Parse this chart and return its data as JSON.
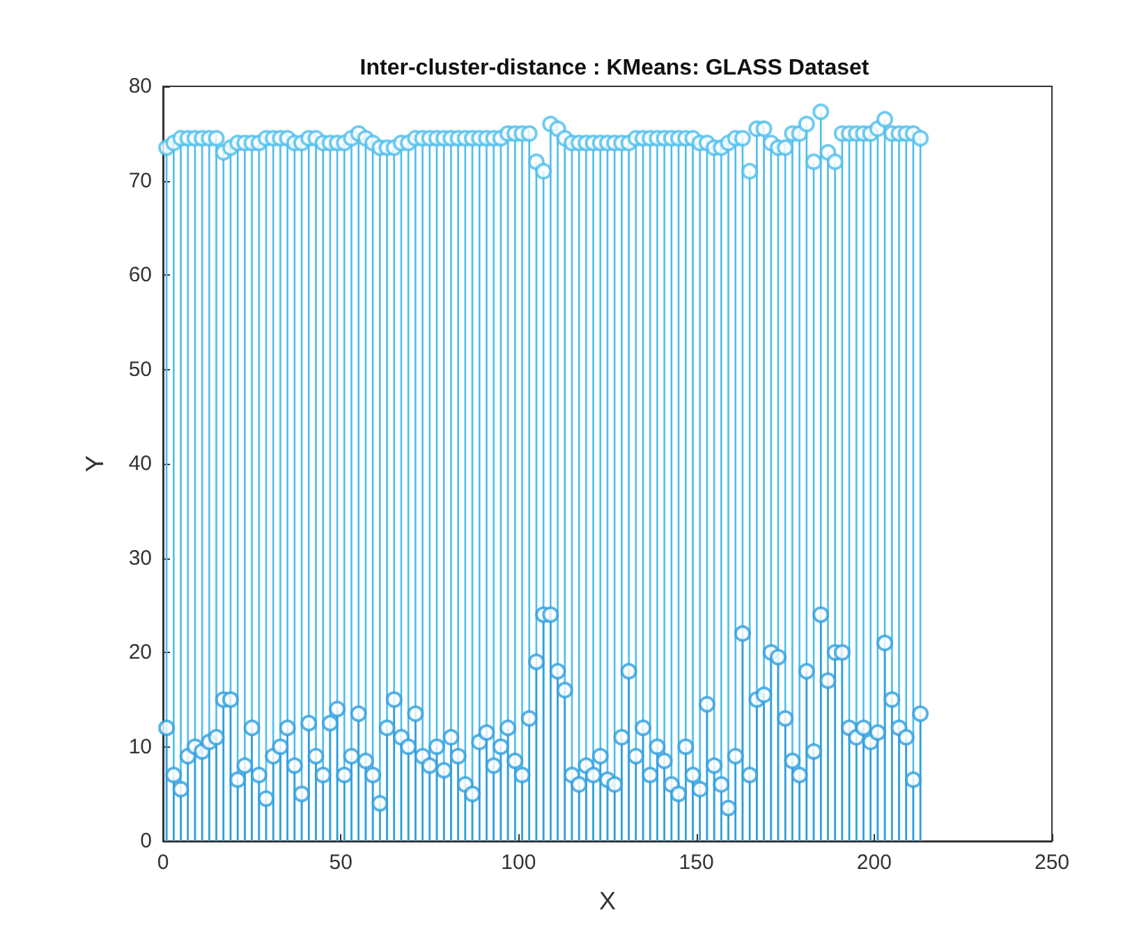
{
  "chart_data": {
    "type": "lollipop",
    "title": "Inter-cluster-distance : KMeans: GLASS Dataset",
    "xlabel": "X",
    "ylabel": "Y",
    "xlim": [
      0,
      250
    ],
    "xticks": [
      0,
      50,
      100,
      150,
      200,
      250
    ],
    "ylim": [
      0,
      80
    ],
    "yticks": [
      0,
      10,
      20,
      30,
      40,
      50,
      60,
      70,
      80
    ],
    "grid": false,
    "marker": "circle",
    "x": [
      1,
      3,
      5,
      7,
      9,
      11,
      13,
      15,
      17,
      19,
      21,
      23,
      25,
      27,
      29,
      31,
      33,
      35,
      37,
      39,
      41,
      43,
      45,
      47,
      49,
      51,
      53,
      55,
      57,
      59,
      61,
      63,
      65,
      67,
      69,
      71,
      73,
      75,
      77,
      79,
      81,
      83,
      85,
      87,
      89,
      91,
      93,
      95,
      97,
      99,
      101,
      103,
      105,
      107,
      109,
      111,
      113,
      115,
      117,
      119,
      121,
      123,
      125,
      127,
      129,
      131,
      133,
      135,
      137,
      139,
      141,
      143,
      145,
      147,
      149,
      151,
      153,
      155,
      157,
      159,
      161,
      163,
      165,
      167,
      169,
      171,
      173,
      175,
      177,
      179,
      181,
      183,
      185,
      187,
      189,
      191,
      193,
      195,
      197,
      199,
      201,
      203,
      205,
      207,
      209,
      211,
      213
    ],
    "series": [
      {
        "color": "#4dbeee",
        "values": [
          73.5,
          74,
          74.5,
          74.5,
          74.5,
          74.5,
          74.5,
          74.5,
          73,
          73.5,
          74,
          74,
          74,
          74,
          74.5,
          74.5,
          74.5,
          74.5,
          74,
          74,
          74.5,
          74.5,
          74,
          74,
          74,
          74,
          74.5,
          75,
          74.5,
          74,
          73.5,
          73.5,
          73.5,
          74,
          74,
          74.5,
          74.5,
          74.5,
          74.5,
          74.5,
          74.5,
          74.5,
          74.5,
          74.5,
          74.5,
          74.5,
          74.5,
          74.5,
          75,
          75,
          75,
          75,
          72,
          71,
          76,
          75.5,
          74.5,
          74,
          74,
          74,
          74,
          74,
          74,
          74,
          74,
          74,
          74.5,
          74.5,
          74.5,
          74.5,
          74.5,
          74.5,
          74.5,
          74.5,
          74.5,
          74,
          74,
          73.5,
          73.5,
          74,
          74.5,
          74.5,
          71,
          75.5,
          75.5,
          74,
          73.5,
          73.5,
          75,
          75,
          76,
          72,
          77.3,
          73,
          72,
          75,
          75,
          75,
          75,
          75,
          75.5,
          76.5,
          75,
          75,
          75,
          75,
          74.5
        ]
      },
      {
        "color": "#2f9fe0",
        "values": [
          12,
          7,
          5.5,
          9,
          10,
          9.5,
          10.5,
          11,
          15,
          15,
          6.5,
          8,
          12,
          7,
          4.5,
          9,
          10,
          12,
          8,
          5,
          12.5,
          9,
          7,
          12.5,
          14,
          7,
          9,
          13.5,
          8.5,
          7,
          4,
          12,
          15,
          11,
          10,
          13.5,
          9,
          8,
          10,
          7.5,
          11,
          9,
          6,
          5,
          10.5,
          11.5,
          8,
          10,
          12,
          8.5,
          7,
          13,
          19,
          24,
          24,
          18,
          16,
          7,
          6,
          8,
          7,
          9,
          6.5,
          6,
          11,
          18,
          9,
          12,
          7,
          10,
          8.5,
          6,
          5,
          10,
          7,
          5.5,
          14.5,
          8,
          6,
          3.5,
          9,
          22,
          7,
          15,
          15.5,
          20,
          19.5,
          13,
          8.5,
          7,
          18,
          9.5,
          24,
          17,
          20,
          20,
          12,
          11,
          12,
          10.5,
          11.5,
          21,
          15,
          12,
          11,
          6.5,
          13.5
        ]
      }
    ]
  }
}
